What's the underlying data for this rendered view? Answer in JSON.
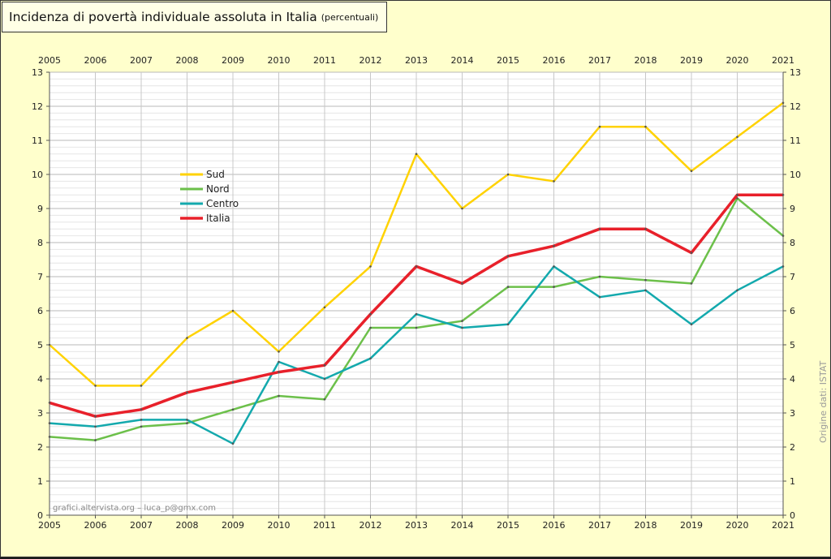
{
  "chart_data": {
    "type": "line",
    "title": "Incidenza di povertà individuale assoluta in Italia",
    "subtitle": "(percentuali)",
    "xlabel": "",
    "ylabel": "",
    "x": [
      "2005",
      "2006",
      "2007",
      "2008",
      "2009",
      "2010",
      "2011",
      "2012",
      "2013",
      "2014",
      "2015",
      "2016",
      "2017",
      "2018",
      "2019",
      "2020",
      "2021"
    ],
    "yticks": [
      "0",
      "1",
      "2",
      "3",
      "4",
      "5",
      "6",
      "7",
      "8",
      "9",
      "10",
      "11",
      "12",
      "13"
    ],
    "ylim": [
      0,
      13
    ],
    "grid": true,
    "legend": "upper-left",
    "series": [
      {
        "name": "Sud",
        "color": "#ffd200",
        "values": [
          5.0,
          3.8,
          3.8,
          5.2,
          6.0,
          4.8,
          6.1,
          7.3,
          10.6,
          9.0,
          10.0,
          9.8,
          11.4,
          11.4,
          10.1,
          11.1,
          12.1
        ]
      },
      {
        "name": "Nord",
        "color": "#6cc04a",
        "values": [
          2.3,
          2.2,
          2.6,
          2.7,
          3.1,
          3.5,
          3.4,
          5.5,
          5.5,
          5.7,
          6.7,
          6.7,
          7.0,
          6.9,
          6.8,
          9.3,
          8.2
        ]
      },
      {
        "name": "Centro",
        "color": "#13a9ad",
        "values": [
          2.7,
          2.6,
          2.8,
          2.8,
          2.1,
          4.5,
          4.0,
          4.6,
          5.9,
          5.5,
          5.6,
          7.3,
          6.4,
          6.6,
          5.6,
          6.6,
          7.3
        ]
      },
      {
        "name": "Italia",
        "color": "#e8202a",
        "values": [
          3.3,
          2.9,
          3.1,
          3.6,
          3.9,
          4.2,
          4.4,
          5.9,
          7.3,
          6.8,
          7.6,
          7.9,
          8.4,
          8.4,
          7.7,
          9.4,
          9.4
        ]
      }
    ],
    "annotations": {
      "credit": "grafici.altervista.org – luca_p@gmx.com",
      "source": "Origine dati: ISTAT"
    }
  }
}
